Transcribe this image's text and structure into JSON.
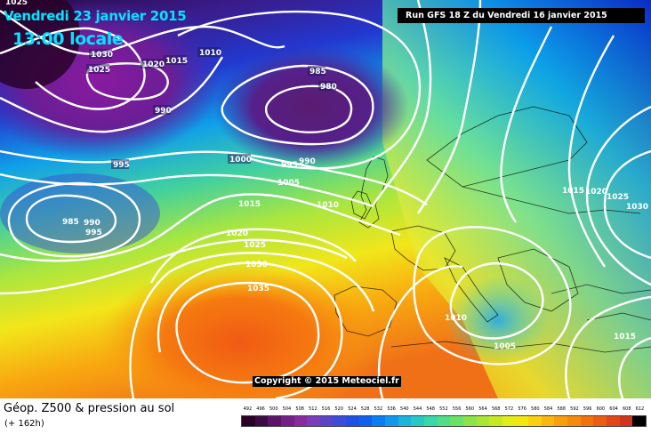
{
  "header": {
    "date": "Vendredi 23 janvier 2015",
    "time": "13:00 locale",
    "run": "Run GFS 18 Z du Vendredi 16 janvier 2015"
  },
  "copyright": "Copyright © 2015 Meteociel.fr",
  "isobar_labels": {
    "p1025a": "1025",
    "p1030a": "1030",
    "p1025b": "1025",
    "p1020a": "1020",
    "p1015a": "1015",
    "p1010a": "1010",
    "p990a": "990",
    "p985a": "985",
    "p980": "980",
    "p995a": "995",
    "p1000": "1000",
    "p995b": "995",
    "p990b": "990",
    "p1005a": "1005",
    "p985b": "985",
    "p990c": "990",
    "p995c": "995",
    "p1015b": "1015",
    "p1010b": "1010",
    "p1020b": "1020",
    "p1025c": "1025",
    "p1030b": "1030",
    "p1035": "1035",
    "p1015c": "1015",
    "p1020c": "1020",
    "p1025d": "1025",
    "p1030c": "1030",
    "p1010c": "1010",
    "p1005b": "1005",
    "p1015d": "1015"
  },
  "legend": {
    "title": "Géop. Z500 & pression au sol",
    "subtitle": "(+ 162h)",
    "scale": [
      "492",
      "496",
      "500",
      "504",
      "508",
      "512",
      "516",
      "520",
      "524",
      "528",
      "532",
      "536",
      "540",
      "544",
      "548",
      "552",
      "556",
      "560",
      "564",
      "568",
      "572",
      "576",
      "580",
      "584",
      "588",
      "592",
      "596",
      "600",
      "604",
      "608",
      "612"
    ],
    "colors": [
      "#2a0028",
      "#3c0a44",
      "#5a146a",
      "#73208a",
      "#8a2aa0",
      "#7a3cb8",
      "#5a44c8",
      "#3a4cd8",
      "#1e50e6",
      "#1060f0",
      "#0a7cf4",
      "#1098ee",
      "#1cb2de",
      "#28c8c6",
      "#38d8a8",
      "#4ee088",
      "#6ae266",
      "#8ae448",
      "#a8e632",
      "#c6ea22",
      "#e2ee16",
      "#f4e610",
      "#fad010",
      "#fab80e",
      "#f8a00c",
      "#f68a0c",
      "#f2720e",
      "#ec5c12",
      "#e24616",
      "#d0341a",
      "#000000"
    ]
  }
}
